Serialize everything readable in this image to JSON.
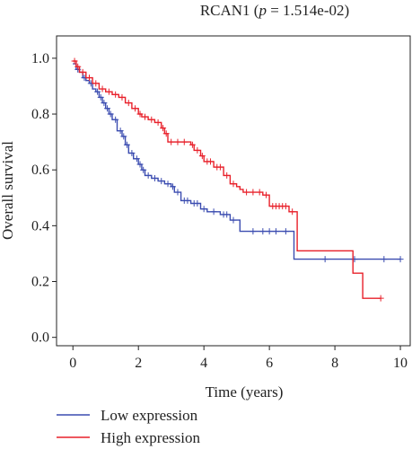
{
  "chart_data": {
    "type": "line",
    "title_prefix": "RCAN1 (",
    "title_p": "p",
    "title_suffix": " = 1.514e-02)",
    "xlabel": "Time (years)",
    "ylabel": "Overall survival",
    "xlim": [
      -0.5,
      10.3
    ],
    "ylim": [
      -0.03,
      1.08
    ],
    "xticks": [
      0,
      2,
      4,
      6,
      8,
      10
    ],
    "yticks": [
      0.0,
      0.2,
      0.4,
      0.6,
      0.8,
      1.0
    ],
    "ytick_labels": [
      "0.0",
      "0.2",
      "0.4",
      "0.6",
      "0.8",
      "1.0"
    ],
    "grid": false,
    "legend_position": "bottom-left, below plot",
    "series": [
      {
        "name": "Low expression",
        "color": "#3b4cb0",
        "steps": [
          [
            0,
            0.98
          ],
          [
            0.1,
            0.96
          ],
          [
            0.2,
            0.95
          ],
          [
            0.3,
            0.93
          ],
          [
            0.4,
            0.92
          ],
          [
            0.5,
            0.91
          ],
          [
            0.6,
            0.89
          ],
          [
            0.7,
            0.88
          ],
          [
            0.8,
            0.86
          ],
          [
            0.9,
            0.84
          ],
          [
            1.0,
            0.82
          ],
          [
            1.1,
            0.8
          ],
          [
            1.2,
            0.78
          ],
          [
            1.35,
            0.74
          ],
          [
            1.5,
            0.72
          ],
          [
            1.6,
            0.69
          ],
          [
            1.7,
            0.66
          ],
          [
            1.85,
            0.64
          ],
          [
            2.0,
            0.62
          ],
          [
            2.1,
            0.6
          ],
          [
            2.2,
            0.58
          ],
          [
            2.4,
            0.57
          ],
          [
            2.6,
            0.56
          ],
          [
            2.8,
            0.55
          ],
          [
            3.0,
            0.54
          ],
          [
            3.1,
            0.52
          ],
          [
            3.3,
            0.49
          ],
          [
            3.6,
            0.48
          ],
          [
            3.9,
            0.46
          ],
          [
            4.1,
            0.45
          ],
          [
            4.5,
            0.44
          ],
          [
            4.8,
            0.42
          ],
          [
            5.1,
            0.38
          ],
          [
            6.75,
            0.28
          ],
          [
            10.0,
            0.28
          ]
        ],
        "censors": [
          [
            0.15,
            0.96
          ],
          [
            0.35,
            0.93
          ],
          [
            0.55,
            0.91
          ],
          [
            0.75,
            0.88
          ],
          [
            0.85,
            0.86
          ],
          [
            0.95,
            0.84
          ],
          [
            1.05,
            0.82
          ],
          [
            1.15,
            0.8
          ],
          [
            1.3,
            0.78
          ],
          [
            1.45,
            0.74
          ],
          [
            1.55,
            0.72
          ],
          [
            1.65,
            0.69
          ],
          [
            1.8,
            0.66
          ],
          [
            1.95,
            0.64
          ],
          [
            2.05,
            0.62
          ],
          [
            2.15,
            0.6
          ],
          [
            2.3,
            0.58
          ],
          [
            2.5,
            0.57
          ],
          [
            2.7,
            0.56
          ],
          [
            2.9,
            0.55
          ],
          [
            3.05,
            0.54
          ],
          [
            3.2,
            0.52
          ],
          [
            3.4,
            0.49
          ],
          [
            3.5,
            0.49
          ],
          [
            3.7,
            0.48
          ],
          [
            3.8,
            0.48
          ],
          [
            4.0,
            0.46
          ],
          [
            4.3,
            0.45
          ],
          [
            4.6,
            0.44
          ],
          [
            4.7,
            0.44
          ],
          [
            4.9,
            0.42
          ],
          [
            5.5,
            0.38
          ],
          [
            5.8,
            0.38
          ],
          [
            6.0,
            0.38
          ],
          [
            6.2,
            0.38
          ],
          [
            6.5,
            0.38
          ],
          [
            7.7,
            0.28
          ],
          [
            8.6,
            0.28
          ],
          [
            9.5,
            0.28
          ],
          [
            10.0,
            0.28
          ]
        ]
      },
      {
        "name": "High expression",
        "color": "#e8202a",
        "steps": [
          [
            0,
            0.99
          ],
          [
            0.1,
            0.97
          ],
          [
            0.2,
            0.95
          ],
          [
            0.4,
            0.93
          ],
          [
            0.6,
            0.91
          ],
          [
            0.8,
            0.89
          ],
          [
            1.0,
            0.88
          ],
          [
            1.2,
            0.87
          ],
          [
            1.4,
            0.86
          ],
          [
            1.6,
            0.84
          ],
          [
            1.8,
            0.82
          ],
          [
            2.0,
            0.8
          ],
          [
            2.1,
            0.79
          ],
          [
            2.3,
            0.78
          ],
          [
            2.5,
            0.77
          ],
          [
            2.7,
            0.75
          ],
          [
            2.8,
            0.73
          ],
          [
            2.9,
            0.7
          ],
          [
            3.6,
            0.69
          ],
          [
            3.7,
            0.67
          ],
          [
            3.9,
            0.65
          ],
          [
            4.0,
            0.63
          ],
          [
            4.3,
            0.61
          ],
          [
            4.6,
            0.58
          ],
          [
            4.8,
            0.55
          ],
          [
            5.0,
            0.54
          ],
          [
            5.1,
            0.53
          ],
          [
            5.2,
            0.52
          ],
          [
            5.8,
            0.51
          ],
          [
            6.0,
            0.47
          ],
          [
            6.6,
            0.45
          ],
          [
            6.85,
            0.31
          ],
          [
            8.55,
            0.23
          ],
          [
            8.85,
            0.14
          ],
          [
            9.4,
            0.14
          ]
        ],
        "censors": [
          [
            0.05,
            0.99
          ],
          [
            0.15,
            0.97
          ],
          [
            0.3,
            0.95
          ],
          [
            0.5,
            0.93
          ],
          [
            0.7,
            0.91
          ],
          [
            0.9,
            0.89
          ],
          [
            1.1,
            0.88
          ],
          [
            1.3,
            0.87
          ],
          [
            1.5,
            0.86
          ],
          [
            1.7,
            0.84
          ],
          [
            1.9,
            0.82
          ],
          [
            2.05,
            0.8
          ],
          [
            2.2,
            0.79
          ],
          [
            2.4,
            0.78
          ],
          [
            2.6,
            0.77
          ],
          [
            2.75,
            0.75
          ],
          [
            2.85,
            0.73
          ],
          [
            3.0,
            0.7
          ],
          [
            3.2,
            0.7
          ],
          [
            3.4,
            0.7
          ],
          [
            3.65,
            0.69
          ],
          [
            3.8,
            0.67
          ],
          [
            3.95,
            0.65
          ],
          [
            4.1,
            0.63
          ],
          [
            4.2,
            0.63
          ],
          [
            4.4,
            0.61
          ],
          [
            4.5,
            0.61
          ],
          [
            4.7,
            0.58
          ],
          [
            4.9,
            0.55
          ],
          [
            5.3,
            0.52
          ],
          [
            5.5,
            0.52
          ],
          [
            5.7,
            0.52
          ],
          [
            5.9,
            0.51
          ],
          [
            6.1,
            0.47
          ],
          [
            6.2,
            0.47
          ],
          [
            6.3,
            0.47
          ],
          [
            6.4,
            0.47
          ],
          [
            6.5,
            0.47
          ],
          [
            6.7,
            0.45
          ],
          [
            9.4,
            0.14
          ]
        ]
      }
    ]
  }
}
